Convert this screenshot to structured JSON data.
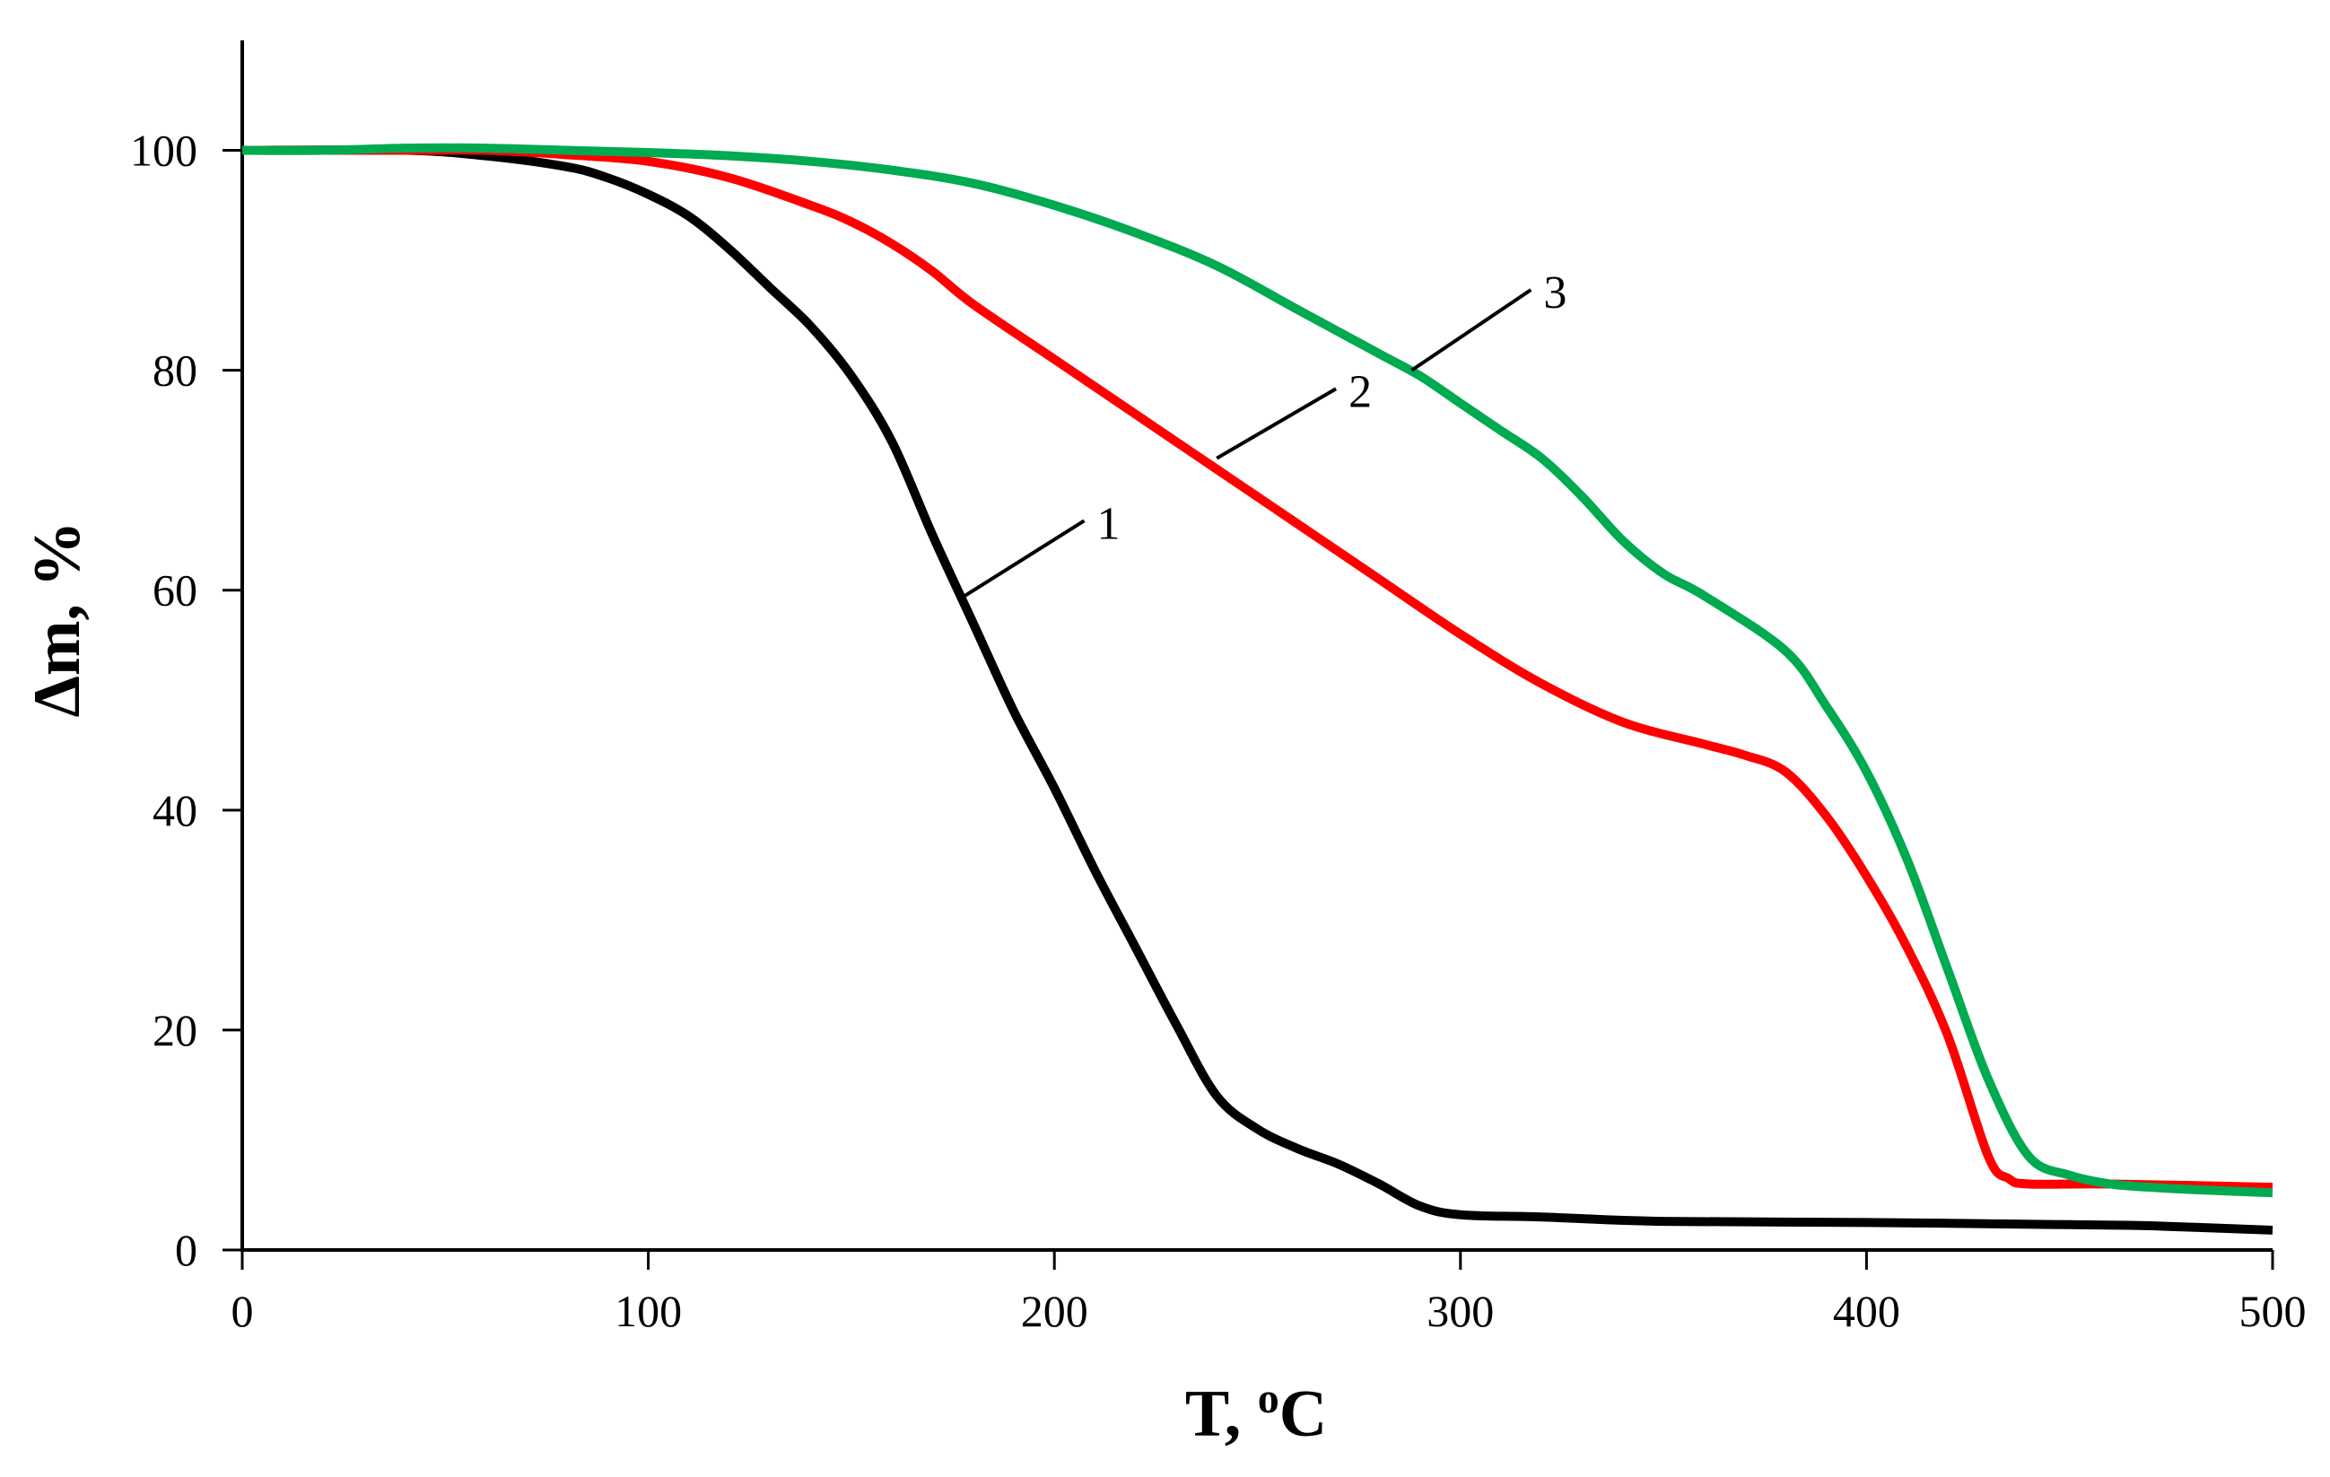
{
  "chart_data": {
    "type": "line",
    "title": "",
    "xlabel": "T, ",
    "xlabel_sup": "o",
    "xlabel_unit": "C",
    "ylabel": "Δm, %",
    "xlim": [
      0,
      500
    ],
    "ylim": [
      0,
      110
    ],
    "x_ticks": [
      0,
      100,
      200,
      300,
      400,
      500
    ],
    "y_ticks": [
      0,
      20,
      40,
      60,
      80,
      100
    ],
    "x_tick_labels": [
      "0",
      "100",
      "200",
      "300",
      "400",
      "500"
    ],
    "y_tick_labels": [
      "0",
      "20",
      "40",
      "60",
      "80",
      "100"
    ],
    "grid": false,
    "legend": "none",
    "series": [
      {
        "name": "1",
        "color": "#000000",
        "x": [
          0,
          40,
          60,
          80,
          90,
          100,
          110,
          120,
          130,
          140,
          150,
          160,
          170,
          180,
          190,
          200,
          210,
          220,
          230,
          240,
          250,
          260,
          270,
          280,
          290,
          300,
          320,
          350,
          400,
          450,
          470,
          500
        ],
        "y": [
          100,
          100,
          99.5,
          98.5,
          97.5,
          96,
          94,
          91,
          87.5,
          84,
          79.5,
          73.5,
          65,
          57,
          49,
          42,
          34.5,
          27.5,
          20.5,
          14,
          11,
          9.2,
          7.8,
          6,
          4,
          3.2,
          3,
          2.6,
          2.5,
          2.3,
          2.2,
          1.8
        ],
        "annotation": {
          "x": 178,
          "y": 59.5,
          "label_x": 210,
          "label_y": 65.5
        }
      },
      {
        "name": "2",
        "color": "#ff0000",
        "x": [
          0,
          40,
          60,
          80,
          100,
          120,
          140,
          150,
          160,
          170,
          180,
          200,
          220,
          240,
          250,
          260,
          280,
          300,
          320,
          340,
          360,
          370,
          380,
          390,
          400,
          410,
          420,
          430,
          435,
          440,
          460,
          500
        ],
        "y": [
          100,
          100,
          100,
          99.6,
          99,
          97.5,
          95,
          93.5,
          91.5,
          89,
          86,
          81,
          76,
          71,
          68.5,
          66,
          61,
          56,
          51.5,
          48,
          46,
          45,
          43.5,
          39.5,
          34,
          27.5,
          19.5,
          8.5,
          6.5,
          6,
          6,
          5.7
        ],
        "annotation": {
          "x": 240,
          "y": 72,
          "label_x": 272,
          "label_y": 77.5
        }
      },
      {
        "name": "3",
        "color": "#00aa50",
        "x": [
          0,
          20,
          40,
          60,
          80,
          100,
          120,
          140,
          160,
          180,
          200,
          220,
          240,
          260,
          280,
          290,
          300,
          310,
          320,
          330,
          340,
          350,
          360,
          380,
          390,
          400,
          410,
          420,
          430,
          440,
          450,
          460,
          470,
          480,
          500
        ],
        "y": [
          100,
          100,
          100.2,
          100.2,
          100,
          99.8,
          99.5,
          99,
          98.2,
          97,
          95,
          92.5,
          89.5,
          85.5,
          81.5,
          79.5,
          77,
          74.5,
          72,
          68.5,
          64.5,
          61.5,
          59.5,
          54.5,
          49.5,
          43.5,
          35.5,
          25.5,
          15.5,
          8.5,
          6.8,
          6,
          5.7,
          5.5,
          5.2
        ],
        "annotation": {
          "x": 288,
          "y": 80,
          "label_x": 320,
          "label_y": 86.5
        }
      }
    ]
  }
}
